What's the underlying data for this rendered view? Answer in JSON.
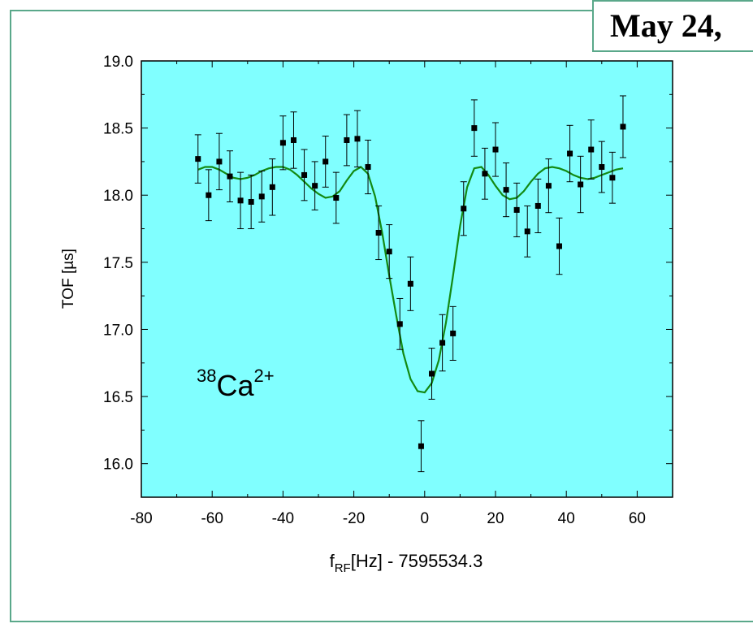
{
  "header": {
    "date_label": "May 24,"
  },
  "colors": {
    "plot_bg": "#80FFFF",
    "fit_line": "#138A13",
    "points": "#000000",
    "frame_border": "#5AA88A"
  },
  "chart_data": {
    "type": "scatter",
    "xlabel_main": "f",
    "xlabel_sub": "RF",
    "xlabel_rest": "[Hz] - 7595534.3",
    "ylabel": "TOF [µs]",
    "annotation": {
      "sup_left": "38",
      "base": "Ca",
      "sup_right": "2+"
    },
    "xlim": [
      -80,
      70
    ],
    "ylim": [
      15.75,
      19.0
    ],
    "xticks": [
      -80,
      -60,
      -40,
      -20,
      0,
      20,
      40,
      60
    ],
    "yticks": [
      16.0,
      16.5,
      17.0,
      17.5,
      18.0,
      18.5,
      19.0
    ],
    "xtick_labels": [
      "-80",
      "-60",
      "-40",
      "-20",
      "0",
      "20",
      "40",
      "60"
    ],
    "ytick_labels": [
      "16.0",
      "16.5",
      "17.0",
      "17.5",
      "18.0",
      "18.5",
      "19.0"
    ],
    "series": [
      {
        "type": "scatter-errorbar",
        "points": [
          {
            "x": -64,
            "y": 18.27,
            "err": 0.18
          },
          {
            "x": -61,
            "y": 18.0,
            "err": 0.19
          },
          {
            "x": -58,
            "y": 18.25,
            "err": 0.21
          },
          {
            "x": -55,
            "y": 18.14,
            "err": 0.19
          },
          {
            "x": -52,
            "y": 17.96,
            "err": 0.21
          },
          {
            "x": -49,
            "y": 17.95,
            "err": 0.2
          },
          {
            "x": -46,
            "y": 17.99,
            "err": 0.19
          },
          {
            "x": -43,
            "y": 18.06,
            "err": 0.21
          },
          {
            "x": -40,
            "y": 18.39,
            "err": 0.2
          },
          {
            "x": -37,
            "y": 18.41,
            "err": 0.21
          },
          {
            "x": -34,
            "y": 18.15,
            "err": 0.19
          },
          {
            "x": -31,
            "y": 18.07,
            "err": 0.18
          },
          {
            "x": -28,
            "y": 18.25,
            "err": 0.19
          },
          {
            "x": -25,
            "y": 17.98,
            "err": 0.19
          },
          {
            "x": -22,
            "y": 18.41,
            "err": 0.19
          },
          {
            "x": -19,
            "y": 18.42,
            "err": 0.21
          },
          {
            "x": -16,
            "y": 18.21,
            "err": 0.2
          },
          {
            "x": -13,
            "y": 17.72,
            "err": 0.2
          },
          {
            "x": -10,
            "y": 17.58,
            "err": 0.2
          },
          {
            "x": -7,
            "y": 17.04,
            "err": 0.19
          },
          {
            "x": -4,
            "y": 17.34,
            "err": 0.2
          },
          {
            "x": -1,
            "y": 16.13,
            "err": 0.19
          },
          {
            "x": 2,
            "y": 16.67,
            "err": 0.19
          },
          {
            "x": 5,
            "y": 16.9,
            "err": 0.21
          },
          {
            "x": 8,
            "y": 16.97,
            "err": 0.2
          },
          {
            "x": 11,
            "y": 17.9,
            "err": 0.2
          },
          {
            "x": 14,
            "y": 18.5,
            "err": 0.21
          },
          {
            "x": 17,
            "y": 18.16,
            "err": 0.19
          },
          {
            "x": 20,
            "y": 18.34,
            "err": 0.2
          },
          {
            "x": 23,
            "y": 18.04,
            "err": 0.2
          },
          {
            "x": 26,
            "y": 17.89,
            "err": 0.2
          },
          {
            "x": 29,
            "y": 17.73,
            "err": 0.19
          },
          {
            "x": 32,
            "y": 17.92,
            "err": 0.2
          },
          {
            "x": 35,
            "y": 18.07,
            "err": 0.2
          },
          {
            "x": 38,
            "y": 17.62,
            "err": 0.21
          },
          {
            "x": 41,
            "y": 18.31,
            "err": 0.21
          },
          {
            "x": 44,
            "y": 18.08,
            "err": 0.21
          },
          {
            "x": 47,
            "y": 18.34,
            "err": 0.22
          },
          {
            "x": 50,
            "y": 18.21,
            "err": 0.19
          },
          {
            "x": 53,
            "y": 18.13,
            "err": 0.19
          },
          {
            "x": 56,
            "y": 18.51,
            "err": 0.23
          }
        ]
      },
      {
        "type": "line",
        "x": [
          -64,
          -62,
          -60,
          -58,
          -56,
          -54,
          -52,
          -50,
          -48,
          -46,
          -44,
          -42,
          -40,
          -38,
          -36,
          -34,
          -32,
          -30,
          -28,
          -26,
          -24,
          -22,
          -20,
          -18,
          -16,
          -14,
          -12,
          -10,
          -8,
          -6,
          -4,
          -2,
          0,
          2,
          4,
          6,
          8,
          10,
          12,
          14,
          16,
          18,
          20,
          22,
          24,
          26,
          28,
          30,
          32,
          34,
          36,
          38,
          40,
          42,
          44,
          46,
          48,
          50,
          52,
          54,
          56
        ],
        "y": [
          18.19,
          18.21,
          18.21,
          18.19,
          18.16,
          18.13,
          18.12,
          18.13,
          18.15,
          18.18,
          18.2,
          18.21,
          18.21,
          18.19,
          18.15,
          18.1,
          18.05,
          18.01,
          17.98,
          17.99,
          18.03,
          18.11,
          18.18,
          18.21,
          18.16,
          17.99,
          17.72,
          17.4,
          17.1,
          16.82,
          16.63,
          16.54,
          16.53,
          16.6,
          16.77,
          17.05,
          17.4,
          17.77,
          18.06,
          18.2,
          18.21,
          18.15,
          18.07,
          18.0,
          17.97,
          17.98,
          18.03,
          18.1,
          18.16,
          18.2,
          18.21,
          18.2,
          18.18,
          18.15,
          18.13,
          18.12,
          18.13,
          18.15,
          18.17,
          18.19,
          18.2
        ]
      }
    ]
  }
}
